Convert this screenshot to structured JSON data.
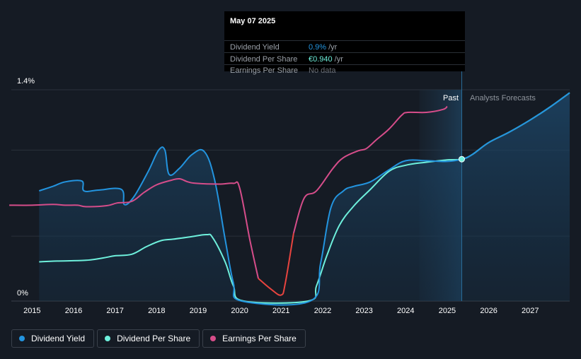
{
  "tooltip": {
    "date": "May 07 2025",
    "rows": [
      {
        "label": "Dividend Yield",
        "value": "0.9%",
        "unit": "/yr",
        "color": "#2394df"
      },
      {
        "label": "Dividend Per Share",
        "value": "€0.940",
        "unit": "/yr",
        "color": "#6ef0dc"
      },
      {
        "label": "Earnings Per Share",
        "value": "No data",
        "unit": "",
        "color": "#6b7079"
      }
    ]
  },
  "colors": {
    "dividend_yield": "#2394df",
    "dividend_per_share": "#6ef0dc",
    "earnings_per_share": "#d64d8a",
    "earnings_per_share_negative": "#e8443f"
  },
  "chart_data": {
    "type": "line",
    "y_tick_labels": [
      "1.4%",
      "0%"
    ],
    "ylim_yield_percent": [
      0,
      1.4
    ],
    "xlim": [
      2014.5,
      2027.95
    ],
    "x_ticks": [
      2015,
      2016,
      2017,
      2018,
      2019,
      2020,
      2021,
      2022,
      2023,
      2024,
      2025,
      2026,
      2027
    ],
    "past_label": "Past",
    "forecast_label": "Analysts Forecasts",
    "forecast_start": 2025.35,
    "series": [
      {
        "name": "Dividend Yield",
        "unit": "%",
        "points": [
          [
            2015.17,
            0.73
          ],
          [
            2015.5,
            0.76
          ],
          [
            2015.8,
            0.79
          ],
          [
            2016.2,
            0.795
          ],
          [
            2016.25,
            0.73
          ],
          [
            2016.6,
            0.735
          ],
          [
            2017.15,
            0.74
          ],
          [
            2017.22,
            0.64
          ],
          [
            2017.45,
            0.69
          ],
          [
            2017.8,
            0.86
          ],
          [
            2018.05,
            1.0
          ],
          [
            2018.2,
            1.0
          ],
          [
            2018.3,
            0.84
          ],
          [
            2018.55,
            0.88
          ],
          [
            2018.85,
            0.97
          ],
          [
            2019.15,
            0.99
          ],
          [
            2019.4,
            0.8
          ],
          [
            2019.65,
            0.41
          ],
          [
            2019.85,
            0.12
          ],
          [
            2020.05,
            0.0
          ],
          [
            2021.7,
            0.0
          ],
          [
            2021.95,
            0.25
          ],
          [
            2022.2,
            0.62
          ],
          [
            2022.5,
            0.73
          ],
          [
            2022.75,
            0.76
          ],
          [
            2023.15,
            0.79
          ],
          [
            2023.6,
            0.87
          ],
          [
            2024.0,
            0.93
          ],
          [
            2024.5,
            0.93
          ],
          [
            2025.0,
            0.925
          ],
          [
            2025.35,
            0.94
          ],
          [
            2025.6,
            0.97
          ],
          [
            2026.0,
            1.05
          ],
          [
            2026.5,
            1.12
          ],
          [
            2027.0,
            1.2
          ],
          [
            2027.5,
            1.29
          ],
          [
            2027.95,
            1.38
          ]
        ]
      },
      {
        "name": "Dividend Per Share",
        "unit": "€",
        "points": [
          [
            2015.17,
            0.26
          ],
          [
            2015.6,
            0.265
          ],
          [
            2016.3,
            0.27
          ],
          [
            2016.7,
            0.285
          ],
          [
            2017.0,
            0.3
          ],
          [
            2017.4,
            0.31
          ],
          [
            2017.75,
            0.36
          ],
          [
            2018.1,
            0.4
          ],
          [
            2018.4,
            0.41
          ],
          [
            2018.8,
            0.425
          ],
          [
            2019.2,
            0.44
          ],
          [
            2019.35,
            0.42
          ],
          [
            2019.65,
            0.26
          ],
          [
            2019.85,
            0.1
          ],
          [
            2020.1,
            0.0
          ],
          [
            2021.65,
            0.0
          ],
          [
            2021.85,
            0.1
          ],
          [
            2022.1,
            0.3
          ],
          [
            2022.4,
            0.5
          ],
          [
            2022.75,
            0.63
          ],
          [
            2023.15,
            0.74
          ],
          [
            2023.6,
            0.86
          ],
          [
            2024.0,
            0.9
          ],
          [
            2024.5,
            0.92
          ],
          [
            2025.0,
            0.935
          ],
          [
            2025.35,
            0.94
          ],
          [
            2025.6,
            0.97
          ],
          [
            2026.0,
            1.05
          ],
          [
            2026.5,
            1.12
          ],
          [
            2027.0,
            1.2
          ],
          [
            2027.5,
            1.29
          ],
          [
            2027.95,
            1.38
          ]
        ]
      },
      {
        "name": "Earnings Per Share",
        "unit": "€",
        "points": [
          [
            2014.45,
            0.635
          ],
          [
            2015.0,
            0.635
          ],
          [
            2015.5,
            0.64
          ],
          [
            2015.8,
            0.635
          ],
          [
            2016.1,
            0.635
          ],
          [
            2016.3,
            0.625
          ],
          [
            2016.8,
            0.632
          ],
          [
            2017.05,
            0.65
          ],
          [
            2017.4,
            0.66
          ],
          [
            2017.7,
            0.72
          ],
          [
            2018.0,
            0.77
          ],
          [
            2018.35,
            0.8
          ],
          [
            2018.55,
            0.81
          ],
          [
            2018.75,
            0.79
          ],
          [
            2018.95,
            0.78
          ],
          [
            2019.5,
            0.775
          ],
          [
            2019.85,
            0.78
          ],
          [
            2020.0,
            0.75
          ],
          [
            2020.25,
            0.4
          ],
          [
            2020.45,
            0.15
          ],
          [
            2020.75,
            0.08
          ],
          [
            2021.0,
            0.04
          ],
          [
            2021.1,
            0.12
          ],
          [
            2021.3,
            0.45
          ],
          [
            2021.55,
            0.68
          ],
          [
            2021.85,
            0.73
          ],
          [
            2022.25,
            0.88
          ],
          [
            2022.5,
            0.95
          ],
          [
            2022.85,
            0.995
          ],
          [
            2023.05,
            1.01
          ],
          [
            2023.3,
            1.07
          ],
          [
            2023.6,
            1.14
          ],
          [
            2023.9,
            1.23
          ],
          [
            2024.05,
            1.25
          ],
          [
            2024.5,
            1.25
          ],
          [
            2024.9,
            1.27
          ],
          [
            2025.0,
            1.29
          ]
        ]
      }
    ]
  },
  "legend": [
    {
      "label": "Dividend Yield",
      "color": "#2394df"
    },
    {
      "label": "Dividend Per Share",
      "color": "#6ef0dc"
    },
    {
      "label": "Earnings Per Share",
      "color": "#d64d8a"
    }
  ]
}
